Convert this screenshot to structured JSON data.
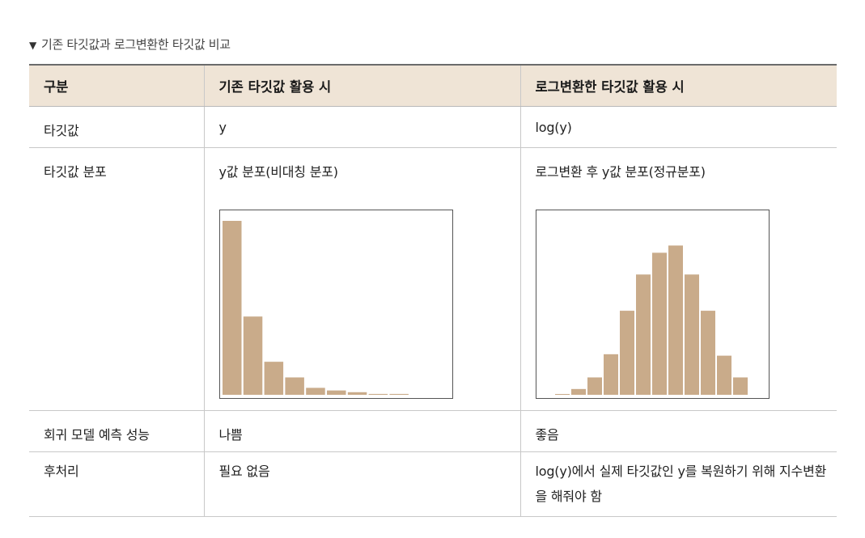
{
  "caption": {
    "marker": "▼",
    "text": "기존 타깃값과 로그변환한 타깃값 비교"
  },
  "table": {
    "headers": [
      "구분",
      "기존 타깃값 활용 시",
      "로그변환한 타깃값 활용 시"
    ],
    "rows": {
      "target": [
        "타깃값",
        "y",
        "log(y)"
      ],
      "distribution": [
        "타깃값 분포",
        "y값 분포(비대칭 분포)",
        "로그변환 후 y값 분포(정규분포)"
      ],
      "performance": [
        "회귀 모델 예측 성능",
        "나쁨",
        "좋음"
      ],
      "postprocess": [
        "후처리",
        "필요 없음",
        "log(y)에서 실제 타깃값인 y를 복원하기 위해 지수변환을 해줘야 함"
      ]
    }
  },
  "chart_data": [
    {
      "type": "bar",
      "values": [
        100,
        45,
        19,
        10,
        4,
        2.5,
        1.5,
        0.5,
        0.5
      ],
      "ylim": [
        0,
        100
      ],
      "color": "#c9ab8a"
    },
    {
      "type": "bar",
      "values": [
        0.5,
        4,
        12,
        28,
        58,
        83,
        98,
        103,
        83,
        58,
        27,
        12
      ],
      "ylim": [
        0,
        120
      ],
      "color": "#c9ab8a"
    }
  ]
}
